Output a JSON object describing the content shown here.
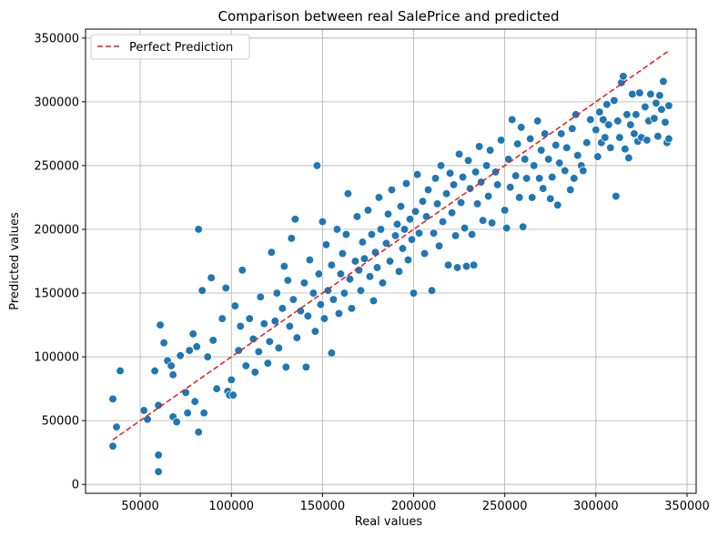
{
  "chart_data": {
    "type": "scatter",
    "title": "Comparison between real SalePrice and predicted",
    "xlabel": "Real values",
    "ylabel": "Predicted values",
    "xlim": [
      20000,
      355000
    ],
    "ylim": [
      -7000,
      357000
    ],
    "xticks": [
      50000,
      100000,
      150000,
      200000,
      250000,
      300000,
      350000
    ],
    "yticks": [
      0,
      50000,
      100000,
      150000,
      200000,
      250000,
      300000,
      350000
    ],
    "grid": true,
    "legend_position": "upper-left",
    "colors": {
      "points": "#1f77b4",
      "reference_line": "#e41a1c"
    },
    "reference_line": {
      "name": "Perfect Prediction",
      "style": "dashed",
      "x": [
        35000,
        340000
      ],
      "y": [
        35000,
        340000
      ]
    },
    "series": [
      {
        "points": [
          [
            35000,
            67000
          ],
          [
            35000,
            30000
          ],
          [
            37000,
            45000
          ],
          [
            39000,
            89000
          ],
          [
            52000,
            58000
          ],
          [
            54000,
            51000
          ],
          [
            58000,
            89000
          ],
          [
            60000,
            62000
          ],
          [
            60000,
            23000
          ],
          [
            60000,
            10000
          ],
          [
            61000,
            125000
          ],
          [
            63000,
            111000
          ],
          [
            65000,
            97000
          ],
          [
            67000,
            93000
          ],
          [
            68000,
            86000
          ],
          [
            68000,
            53000
          ],
          [
            70000,
            49000
          ],
          [
            72000,
            101000
          ],
          [
            75000,
            72000
          ],
          [
            76000,
            56000
          ],
          [
            77000,
            105000
          ],
          [
            79000,
            118000
          ],
          [
            80000,
            65000
          ],
          [
            81000,
            108000
          ],
          [
            82000,
            200000
          ],
          [
            82000,
            41000
          ],
          [
            84000,
            152000
          ],
          [
            85000,
            56000
          ],
          [
            87000,
            100000
          ],
          [
            89000,
            162000
          ],
          [
            90000,
            113000
          ],
          [
            92000,
            75000
          ],
          [
            95000,
            130000
          ],
          [
            97000,
            154000
          ],
          [
            98000,
            73000
          ],
          [
            99000,
            70000
          ],
          [
            100000,
            82000
          ],
          [
            101000,
            70000
          ],
          [
            102000,
            140000
          ],
          [
            104000,
            105000
          ],
          [
            105000,
            124000
          ],
          [
            106000,
            168000
          ],
          [
            108000,
            93000
          ],
          [
            110000,
            130000
          ],
          [
            112000,
            114000
          ],
          [
            113000,
            88000
          ],
          [
            115000,
            104000
          ],
          [
            116000,
            147000
          ],
          [
            118000,
            126000
          ],
          [
            120000,
            95000
          ],
          [
            121000,
            112000
          ],
          [
            122000,
            182000
          ],
          [
            124000,
            128000
          ],
          [
            125000,
            150000
          ],
          [
            126000,
            107000
          ],
          [
            128000,
            138000
          ],
          [
            129000,
            171000
          ],
          [
            130000,
            92000
          ],
          [
            131000,
            160000
          ],
          [
            132000,
            124000
          ],
          [
            133000,
            193000
          ],
          [
            134000,
            145000
          ],
          [
            135000,
            208000
          ],
          [
            136000,
            115000
          ],
          [
            138000,
            136000
          ],
          [
            140000,
            158000
          ],
          [
            141000,
            92000
          ],
          [
            142000,
            132000
          ],
          [
            143000,
            176000
          ],
          [
            145000,
            150000
          ],
          [
            146000,
            120000
          ],
          [
            147000,
            250000
          ],
          [
            148000,
            165000
          ],
          [
            149000,
            141000
          ],
          [
            150000,
            206000
          ],
          [
            151000,
            130000
          ],
          [
            152000,
            188000
          ],
          [
            153000,
            152000
          ],
          [
            155000,
            103000
          ],
          [
            155000,
            172000
          ],
          [
            156000,
            145000
          ],
          [
            158000,
            200000
          ],
          [
            159000,
            134000
          ],
          [
            160000,
            165000
          ],
          [
            161000,
            181000
          ],
          [
            162000,
            150000
          ],
          [
            163000,
            196000
          ],
          [
            164000,
            228000
          ],
          [
            165000,
            161000
          ],
          [
            166000,
            138000
          ],
          [
            168000,
            175000
          ],
          [
            169000,
            210000
          ],
          [
            170000,
            168000
          ],
          [
            171000,
            152000
          ],
          [
            172000,
            190000
          ],
          [
            173000,
            177000
          ],
          [
            175000,
            215000
          ],
          [
            176000,
            163000
          ],
          [
            177000,
            196000
          ],
          [
            178000,
            144000
          ],
          [
            179000,
            182000
          ],
          [
            180000,
            170000
          ],
          [
            181000,
            225000
          ],
          [
            182000,
            200000
          ],
          [
            183000,
            158000
          ],
          [
            185000,
            189000
          ],
          [
            186000,
            212000
          ],
          [
            187000,
            175000
          ],
          [
            188000,
            231000
          ],
          [
            190000,
            195000
          ],
          [
            191000,
            204000
          ],
          [
            192000,
            167000
          ],
          [
            193000,
            218000
          ],
          [
            194000,
            185000
          ],
          [
            195000,
            200000
          ],
          [
            196000,
            236000
          ],
          [
            197000,
            176000
          ],
          [
            198000,
            208000
          ],
          [
            199000,
            192000
          ],
          [
            200000,
            150000
          ],
          [
            201000,
            214000
          ],
          [
            202000,
            243000
          ],
          [
            203000,
            197000
          ],
          [
            205000,
            222000
          ],
          [
            206000,
            181000
          ],
          [
            207000,
            210000
          ],
          [
            208000,
            231000
          ],
          [
            210000,
            152000
          ],
          [
            211000,
            197000
          ],
          [
            212000,
            240000
          ],
          [
            213000,
            220000
          ],
          [
            214000,
            187000
          ],
          [
            215000,
            250000
          ],
          [
            216000,
            206000
          ],
          [
            218000,
            228000
          ],
          [
            219000,
            172000
          ],
          [
            220000,
            244000
          ],
          [
            221000,
            213000
          ],
          [
            222000,
            235000
          ],
          [
            223000,
            195000
          ],
          [
            224000,
            170000
          ],
          [
            225000,
            259000
          ],
          [
            226000,
            221000
          ],
          [
            227000,
            241000
          ],
          [
            228000,
            201000
          ],
          [
            229000,
            171000
          ],
          [
            230000,
            254000
          ],
          [
            231000,
            232000
          ],
          [
            232000,
            196000
          ],
          [
            233000,
            172000
          ],
          [
            234000,
            245000
          ],
          [
            235000,
            220000
          ],
          [
            236000,
            265000
          ],
          [
            237000,
            237000
          ],
          [
            238000,
            207000
          ],
          [
            240000,
            250000
          ],
          [
            241000,
            226000
          ],
          [
            242000,
            262000
          ],
          [
            243000,
            205000
          ],
          [
            245000,
            245000
          ],
          [
            246000,
            235000
          ],
          [
            248000,
            270000
          ],
          [
            250000,
            215000
          ],
          [
            251000,
            201000
          ],
          [
            252000,
            255000
          ],
          [
            253000,
            233000
          ],
          [
            254000,
            286000
          ],
          [
            256000,
            242000
          ],
          [
            257000,
            267000
          ],
          [
            258000,
            225000
          ],
          [
            259000,
            280000
          ],
          [
            260000,
            202000
          ],
          [
            261000,
            255000
          ],
          [
            262000,
            240000
          ],
          [
            264000,
            271000
          ],
          [
            265000,
            225000
          ],
          [
            266000,
            250000
          ],
          [
            268000,
            285000
          ],
          [
            269000,
            240000
          ],
          [
            270000,
            262000
          ],
          [
            271000,
            232000
          ],
          [
            272000,
            275000
          ],
          [
            274000,
            255000
          ],
          [
            275000,
            224000
          ],
          [
            276000,
            241000
          ],
          [
            278000,
            266000
          ],
          [
            279000,
            219000
          ],
          [
            280000,
            252000
          ],
          [
            281000,
            275000
          ],
          [
            283000,
            246000
          ],
          [
            284000,
            264000
          ],
          [
            286000,
            231000
          ],
          [
            287000,
            279000
          ],
          [
            288000,
            240000
          ],
          [
            289000,
            290000
          ],
          [
            290000,
            258000
          ],
          [
            292000,
            250000
          ],
          [
            293000,
            246000
          ],
          [
            295000,
            268000
          ],
          [
            297000,
            286000
          ],
          [
            300000,
            278000
          ],
          [
            301000,
            257000
          ],
          [
            302000,
            292000
          ],
          [
            303000,
            268000
          ],
          [
            304000,
            286000
          ],
          [
            305000,
            272000
          ],
          [
            306000,
            298000
          ],
          [
            307000,
            282000
          ],
          [
            308000,
            264000
          ],
          [
            310000,
            301000
          ],
          [
            311000,
            226000
          ],
          [
            312000,
            285000
          ],
          [
            313000,
            272000
          ],
          [
            314000,
            315000
          ],
          [
            315000,
            320000
          ],
          [
            316000,
            263000
          ],
          [
            317000,
            290000
          ],
          [
            318000,
            256000
          ],
          [
            319000,
            282000
          ],
          [
            320000,
            306000
          ],
          [
            321000,
            275000
          ],
          [
            322000,
            290000
          ],
          [
            323000,
            269000
          ],
          [
            324000,
            307000
          ],
          [
            325000,
            272000
          ],
          [
            327000,
            296000
          ],
          [
            328000,
            270000
          ],
          [
            329000,
            285000
          ],
          [
            330000,
            306000
          ],
          [
            332000,
            287000
          ],
          [
            333000,
            299000
          ],
          [
            334000,
            273000
          ],
          [
            335000,
            305000
          ],
          [
            336000,
            294000
          ],
          [
            337000,
            316000
          ],
          [
            338000,
            284000
          ],
          [
            339000,
            268000
          ],
          [
            340000,
            297000
          ],
          [
            340000,
            271000
          ]
        ]
      }
    ]
  }
}
